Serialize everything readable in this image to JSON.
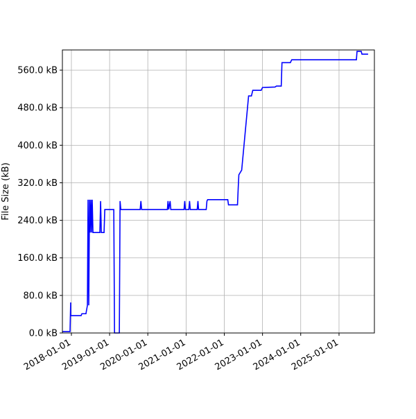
{
  "chart_data": {
    "type": "line",
    "ylabel": "File Size (kB)",
    "x": [
      "2017-10-07",
      "2017-12-19",
      "2017-12-25",
      "2017-12-25",
      "2018-04-04",
      "2018-04-11",
      "2018-05-20",
      "2018-06-03",
      "2018-06-09",
      "2018-06-16",
      "2018-06-23",
      "2018-06-29",
      "2018-07-06",
      "2018-07-13",
      "2018-07-19",
      "2018-07-26",
      "2018-08-02",
      "2018-09-30",
      "2018-10-07",
      "2018-10-14",
      "2018-11-09",
      "2018-11-16",
      "2019-02-10",
      "2019-02-17",
      "2019-04-04",
      "2019-04-11",
      "2019-04-18",
      "2019-10-20",
      "2019-10-27",
      "2019-11-03",
      "2020-07-06",
      "2020-07-12",
      "2020-07-19",
      "2020-08-01",
      "2020-08-08",
      "2020-12-12",
      "2020-12-19",
      "2020-12-25",
      "2021-01-27",
      "2021-02-03",
      "2021-02-10",
      "2021-04-17",
      "2021-04-24",
      "2021-04-30",
      "2021-07-12",
      "2021-07-19",
      "2021-07-26",
      "2022-02-03",
      "2022-02-10",
      "2022-05-07",
      "2022-05-14",
      "2022-05-20",
      "2022-06-16",
      "2022-08-21",
      "2022-09-17",
      "2022-09-30",
      "2022-12-19",
      "2023-01-01",
      "2023-05-01",
      "2023-05-14",
      "2023-06-29",
      "2023-07-06",
      "2023-09-24",
      "2023-10-07",
      "2025-06-16",
      "2025-06-22",
      "2025-08-01",
      "2025-08-08",
      "2025-10-06"
    ],
    "series": [
      {
        "name": "File Size",
        "color": "#0000ff",
        "values": [
          3,
          3,
          65,
          37,
          37,
          41,
          41,
          59,
          284,
          59,
          284,
          214,
          284,
          214,
          284,
          214,
          214,
          214,
          281,
          214,
          214,
          263,
          263,
          0,
          0,
          281,
          263,
          263,
          281,
          263,
          263,
          281,
          263,
          281,
          263,
          263,
          281,
          263,
          263,
          281,
          263,
          263,
          281,
          263,
          263,
          281,
          284,
          284,
          273,
          273,
          310,
          337,
          347,
          505,
          505,
          517,
          517,
          523,
          524,
          526,
          526,
          576,
          576,
          582,
          582,
          600,
          600,
          594,
          594
        ]
      }
    ],
    "xlim": [
      "2017-10-07",
      "2025-12-05"
    ],
    "xticks": [
      "2018-01-01",
      "2019-01-01",
      "2020-01-01",
      "2021-01-01",
      "2022-01-01",
      "2023-01-01",
      "2024-01-01",
      "2025-01-01"
    ],
    "ylim": [
      0,
      603
    ],
    "yticks": [
      {
        "value": 0,
        "label": "0.0 kB"
      },
      {
        "value": 80,
        "label": "80.0 kB"
      },
      {
        "value": 160,
        "label": "160.0 kB"
      },
      {
        "value": 240,
        "label": "240.0 kB"
      },
      {
        "value": 320,
        "label": "320.0 kB"
      },
      {
        "value": 400,
        "label": "400.0 kB"
      },
      {
        "value": 480,
        "label": "480.0 kB"
      },
      {
        "value": 560,
        "label": "560.0 kB"
      }
    ],
    "grid": true
  }
}
